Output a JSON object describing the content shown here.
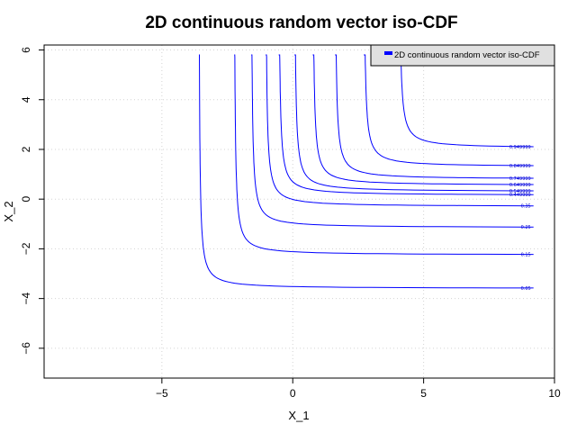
{
  "chart_data": {
    "type": "line",
    "title": "2D continuous random vector iso-CDF",
    "xlabel": "X_1",
    "ylabel": "X_2",
    "xlim": [
      -9.5,
      10
    ],
    "ylim": [
      -7.2,
      6.2
    ],
    "xticks": [
      -5,
      0,
      5,
      10
    ],
    "yticks": [
      -6,
      -4,
      -2,
      0,
      2,
      4,
      6
    ],
    "grid": true,
    "legend": {
      "position": "top-right",
      "entries": [
        "2D continuous random vector iso-CDF"
      ]
    },
    "line_color": "#0000ff",
    "series": [
      {
        "level_label": "0.05",
        "x_asym": -3.6,
        "y_asym": -3.6
      },
      {
        "level_label": "0.15",
        "x_asym": -2.25,
        "y_asym": -2.25
      },
      {
        "level_label": "0.25",
        "x_asym": -1.6,
        "y_asym": -1.15
      },
      {
        "level_label": "0.35",
        "x_asym": -1.05,
        "y_asym": -0.3
      },
      {
        "level_label": "0.449999",
        "x_asym": -0.55,
        "y_asym": 0.15
      },
      {
        "level_label": "0.549999",
        "x_asym": 0.05,
        "y_asym": 0.3
      },
      {
        "level_label": "0.649999",
        "x_asym": 0.75,
        "y_asym": 0.55
      },
      {
        "level_label": "0.749999",
        "x_asym": 1.6,
        "y_asym": 0.8
      },
      {
        "level_label": "0.849999",
        "x_asym": 2.7,
        "y_asym": 1.3
      },
      {
        "level_label": "0.949999",
        "x_asym": 4.05,
        "y_asym": 2.05
      }
    ]
  }
}
